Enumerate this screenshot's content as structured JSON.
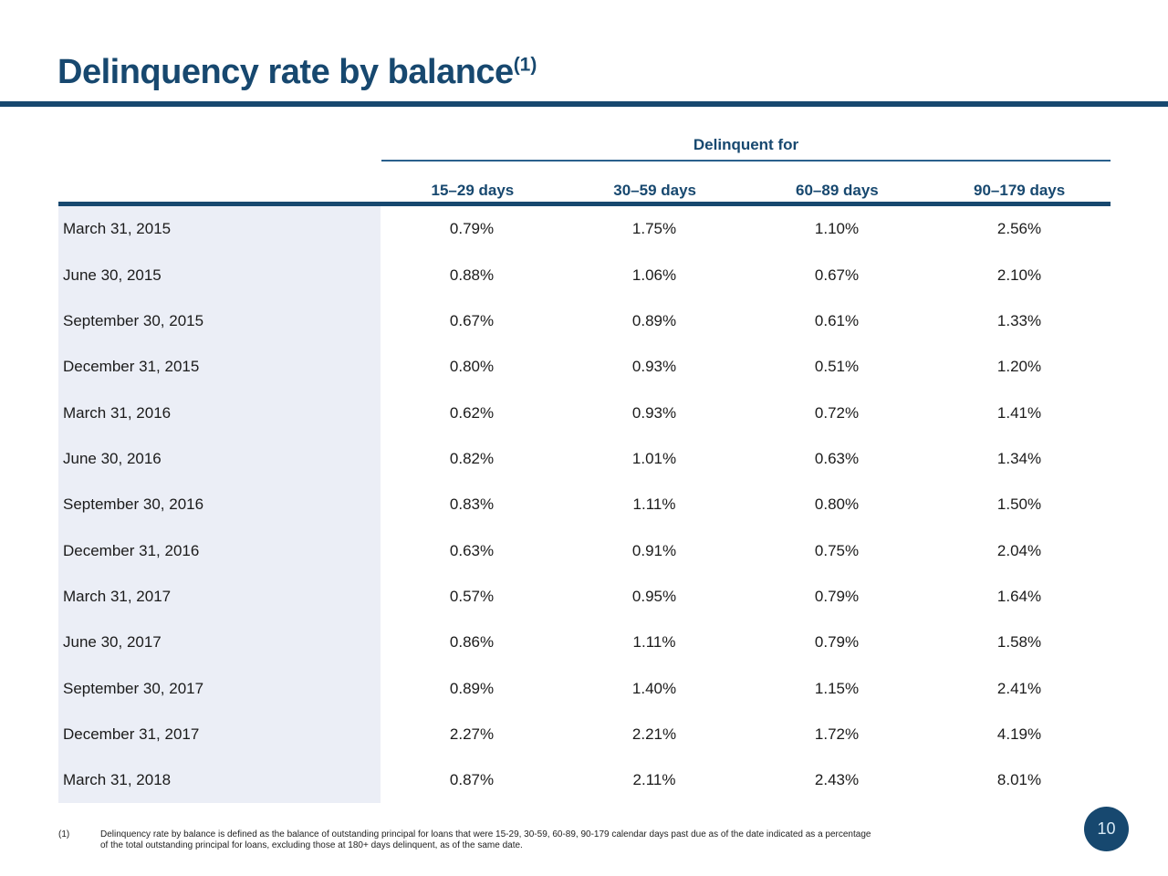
{
  "title": {
    "text": "Delinquency rate by balance",
    "superscript": "(1)"
  },
  "table": {
    "group_header": "Delinquent for",
    "columns": [
      "15–29 days",
      "30–59 days",
      "60–89 days",
      "90–179 days"
    ],
    "rows": [
      {
        "label": "March 31, 2015",
        "values": [
          "0.79%",
          "1.75%",
          "1.10%",
          "2.56%"
        ]
      },
      {
        "label": "June 30, 2015",
        "values": [
          "0.88%",
          "1.06%",
          "0.67%",
          "2.10%"
        ]
      },
      {
        "label": "September 30, 2015",
        "values": [
          "0.67%",
          "0.89%",
          "0.61%",
          "1.33%"
        ]
      },
      {
        "label": "December 31, 2015",
        "values": [
          "0.80%",
          "0.93%",
          "0.51%",
          "1.20%"
        ]
      },
      {
        "label": "March 31, 2016",
        "values": [
          "0.62%",
          "0.93%",
          "0.72%",
          "1.41%"
        ]
      },
      {
        "label": "June 30, 2016",
        "values": [
          "0.82%",
          "1.01%",
          "0.63%",
          "1.34%"
        ]
      },
      {
        "label": "September 30, 2016",
        "values": [
          "0.83%",
          "1.11%",
          "0.80%",
          "1.50%"
        ]
      },
      {
        "label": "December 31, 2016",
        "values": [
          "0.63%",
          "0.91%",
          "0.75%",
          "2.04%"
        ]
      },
      {
        "label": "March 31, 2017",
        "values": [
          "0.57%",
          "0.95%",
          "0.79%",
          "1.64%"
        ]
      },
      {
        "label": "June 30, 2017",
        "values": [
          "0.86%",
          "1.11%",
          "0.79%",
          "1.58%"
        ]
      },
      {
        "label": "September 30, 2017",
        "values": [
          "0.89%",
          "1.40%",
          "1.15%",
          "2.41%"
        ]
      },
      {
        "label": "December 31, 2017",
        "values": [
          "2.27%",
          "2.21%",
          "1.72%",
          "4.19%"
        ]
      },
      {
        "label": "March 31, 2018",
        "values": [
          "0.87%",
          "2.11%",
          "2.43%",
          "8.01%"
        ]
      }
    ]
  },
  "footnote": {
    "marker": "(1)",
    "lines": [
      "Delinquency rate by balance is defined as the balance of outstanding principal for loans that were 15-29, 30-59, 60-89, 90-179 calendar days past due as of the date indicated as a percentage",
      "of the total outstanding principal for loans, excluding those at 180+ days delinquent, as of the same date."
    ]
  },
  "page_number": "10",
  "colors": {
    "navy": "#17486f",
    "row_label_bg": "#ebeef6",
    "page_circle_text": "#d8eaf6"
  }
}
